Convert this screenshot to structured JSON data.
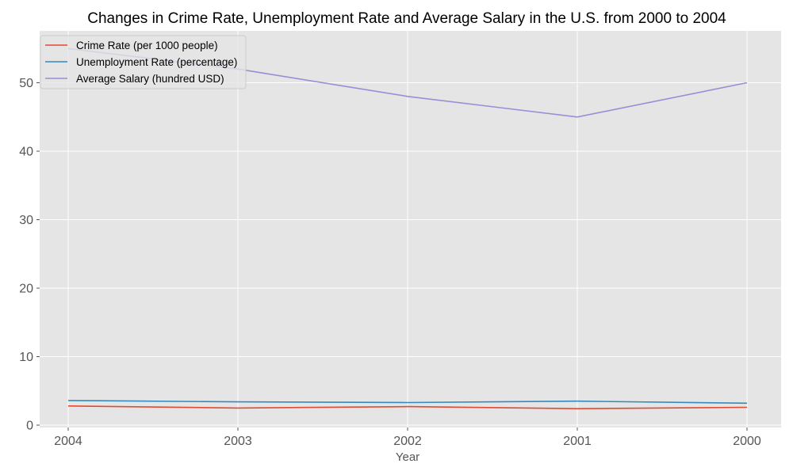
{
  "chart_data": {
    "type": "line",
    "title": "Changes in Crime Rate, Unemployment Rate and Average Salary in the U.S. from 2000 to 2004",
    "xlabel": "Year",
    "ylabel": "",
    "categories": [
      "2004",
      "2003",
      "2002",
      "2001",
      "2000"
    ],
    "ylim": [
      0,
      57.5
    ],
    "yticks": [
      0,
      10,
      20,
      30,
      40,
      50
    ],
    "grid": true,
    "legend_position": "top-left",
    "background": "#e5e5e5",
    "series": [
      {
        "name": "Crime Rate (per 1000 people)",
        "color": "#e24a33",
        "values": [
          2.8,
          2.5,
          2.7,
          2.4,
          2.6
        ]
      },
      {
        "name": "Unemployment Rate (percentage)",
        "color": "#348abd",
        "values": [
          3.6,
          3.4,
          3.3,
          3.5,
          3.2
        ]
      },
      {
        "name": "Average Salary (hundred USD)",
        "color": "#988ed5",
        "values": [
          55,
          52,
          48,
          45,
          50
        ]
      }
    ]
  }
}
